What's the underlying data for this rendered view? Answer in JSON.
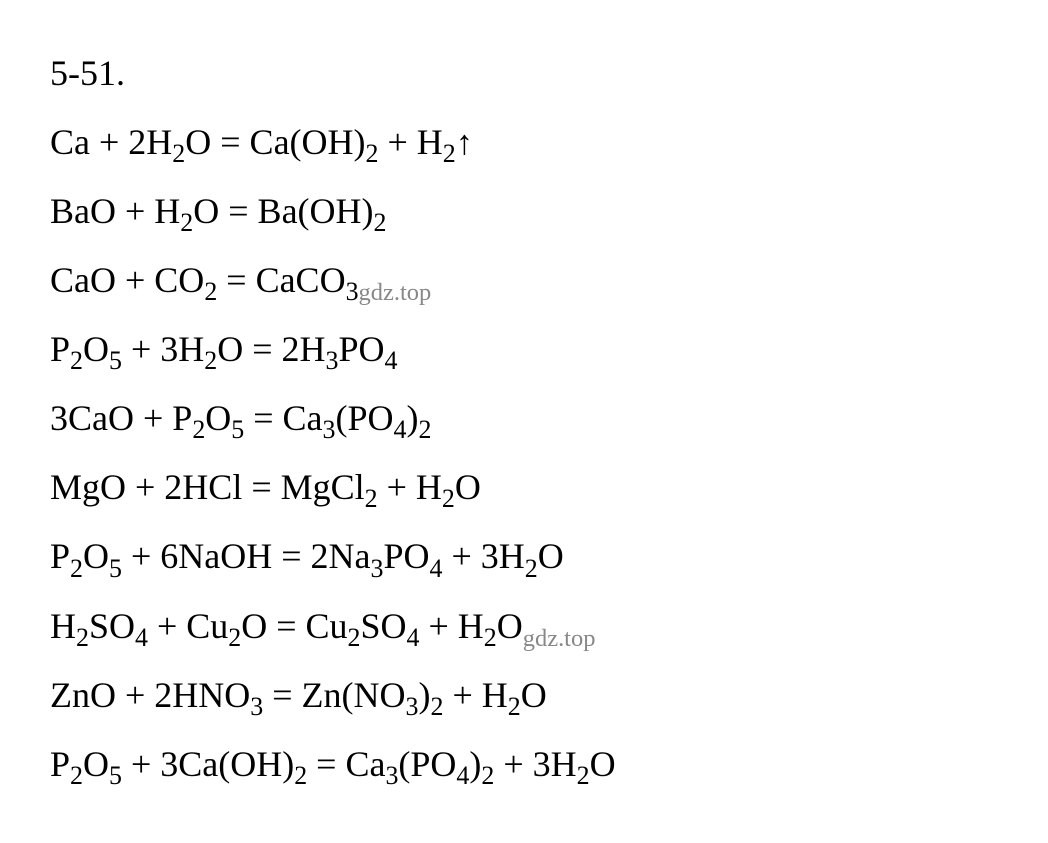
{
  "heading": "5-51.",
  "watermark": "gdz.top",
  "equations": [
    {
      "parts": [
        "Ca + 2H",
        "2",
        "O = Ca(OH)",
        "2",
        " + H",
        "2",
        "↑"
      ],
      "types": [
        "text",
        "sub",
        "text",
        "sub",
        "text",
        "sub",
        "arrow"
      ]
    },
    {
      "parts": [
        "BaO + H",
        "2",
        "O = Ba(OH)",
        "2"
      ],
      "types": [
        "text",
        "sub",
        "text",
        "sub"
      ]
    },
    {
      "parts": [
        "CaO + CO",
        "2",
        " = CaCO",
        "3"
      ],
      "types": [
        "text",
        "sub",
        "text",
        "sub"
      ],
      "watermark_after": true
    },
    {
      "parts": [
        "P",
        "2",
        "O",
        "5",
        " + 3H",
        "2",
        "O = 2H",
        "3",
        "PO",
        "4"
      ],
      "types": [
        "text",
        "sub",
        "text",
        "sub",
        "text",
        "sub",
        "text",
        "sub",
        "text",
        "sub"
      ]
    },
    {
      "parts": [
        "3CaO + P",
        "2",
        "O",
        "5",
        " = Ca",
        "3",
        "(PO",
        "4",
        ")",
        "2"
      ],
      "types": [
        "text",
        "sub",
        "text",
        "sub",
        "text",
        "sub",
        "text",
        "sub",
        "text",
        "sub"
      ]
    },
    {
      "parts": [
        "MgO + 2HCl = MgCl",
        "2",
        " + H",
        "2",
        "O"
      ],
      "types": [
        "text",
        "sub",
        "text",
        "sub",
        "text"
      ]
    },
    {
      "parts": [
        "P",
        "2",
        "O",
        "5",
        " + 6NaOH = 2Na",
        "3",
        "PO",
        "4",
        " + 3H",
        "2",
        "O"
      ],
      "types": [
        "text",
        "sub",
        "text",
        "sub",
        "text",
        "sub",
        "text",
        "sub",
        "text",
        "sub",
        "text"
      ]
    },
    {
      "parts": [
        "H",
        "2",
        "SO",
        "4",
        " + Cu",
        "2",
        "O = Cu",
        "2",
        "SO",
        "4",
        " + H",
        "2",
        "O"
      ],
      "types": [
        "text",
        "sub",
        "text",
        "sub",
        "text",
        "sub",
        "text",
        "sub",
        "text",
        "sub",
        "text",
        "sub",
        "text"
      ],
      "watermark_after": true
    },
    {
      "parts": [
        "ZnO + 2HNO",
        "3",
        " = Zn(NO",
        "3",
        ")",
        "2",
        " + H",
        "2",
        "O"
      ],
      "types": [
        "text",
        "sub",
        "text",
        "sub",
        "text",
        "sub",
        "text",
        "sub",
        "text"
      ]
    },
    {
      "parts": [
        "P",
        "2",
        "O",
        "5",
        " + 3Ca(OH)",
        "2",
        " = Ca",
        "3",
        "(PO",
        "4",
        ")",
        "2",
        " + 3H",
        "2",
        "O"
      ],
      "types": [
        "text",
        "sub",
        "text",
        "sub",
        "text",
        "sub",
        "text",
        "sub",
        "text",
        "sub",
        "text",
        "sub",
        "text",
        "sub",
        "text"
      ]
    }
  ],
  "colors": {
    "background": "#ffffff",
    "text": "#000000",
    "watermark": "#888888"
  },
  "typography": {
    "font_family": "Times New Roman",
    "font_size_pt": 27,
    "line_height": 1.85
  }
}
